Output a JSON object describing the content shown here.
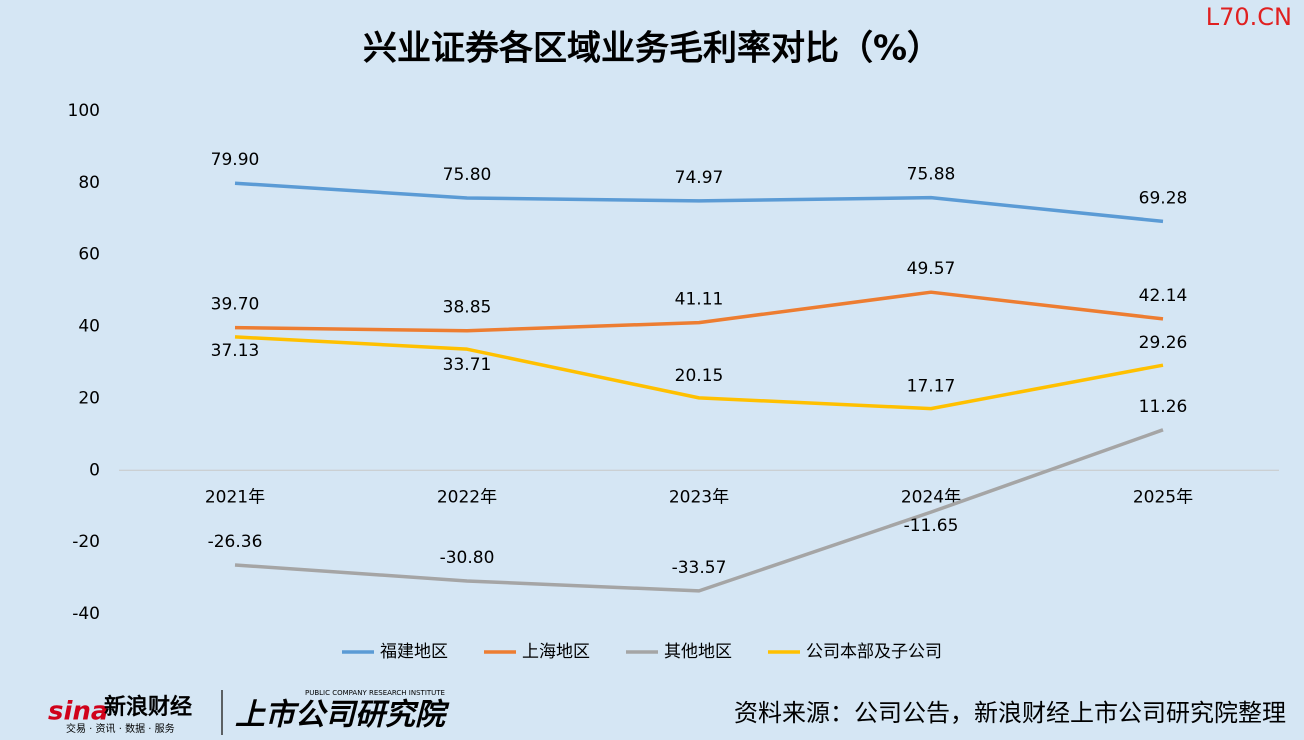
{
  "chart_data": {
    "type": "line",
    "title": "兴业证券各区域业务毛利率对比（%）",
    "categories": [
      "2021年",
      "2022年",
      "2023年",
      "2024年",
      "2025年"
    ],
    "series": [
      {
        "name": "福建地区",
        "color": "#5b9bd5",
        "values": [
          79.9,
          75.8,
          74.97,
          75.88,
          69.28
        ],
        "value_labels": [
          "79.90",
          "75.80",
          "74.97",
          "75.88",
          "69.28"
        ]
      },
      {
        "name": "上海地区",
        "color": "#ed7d31",
        "values": [
          39.7,
          38.85,
          41.11,
          49.57,
          42.14
        ],
        "value_labels": [
          "39.70",
          "38.85",
          "41.11",
          "49.57",
          "42.14"
        ]
      },
      {
        "name": "其他地区",
        "color": "#a5a5a5",
        "values": [
          -26.36,
          -30.8,
          -33.57,
          -11.65,
          11.26
        ],
        "value_labels": [
          "-26.36",
          "-30.80",
          "-33.57",
          "-11.65",
          "11.26"
        ]
      },
      {
        "name": "公司本部及子公司",
        "color": "#ffc000",
        "values": [
          37.13,
          33.71,
          20.15,
          17.17,
          29.26
        ],
        "value_labels": [
          "37.13",
          "33.71",
          "20.15",
          "17.17",
          "29.26"
        ]
      }
    ],
    "ylim": [
      -40,
      100
    ],
    "yticks": [
      -40,
      -20,
      0,
      20,
      40,
      60,
      80,
      100
    ],
    "grid": false,
    "legend": "bottom"
  },
  "branding": {
    "site": "L70.CN",
    "sina": "sina",
    "sina_name": "新浪财经",
    "sina_slogan": "交易 · 资讯 · 数据 · 服务",
    "institute": "上市公司研究院",
    "institute_en": "PUBLIC COMPANY RESEARCH INSTITUTE",
    "source": "资料来源：公司公告，新浪财经上市公司研究院整理"
  }
}
